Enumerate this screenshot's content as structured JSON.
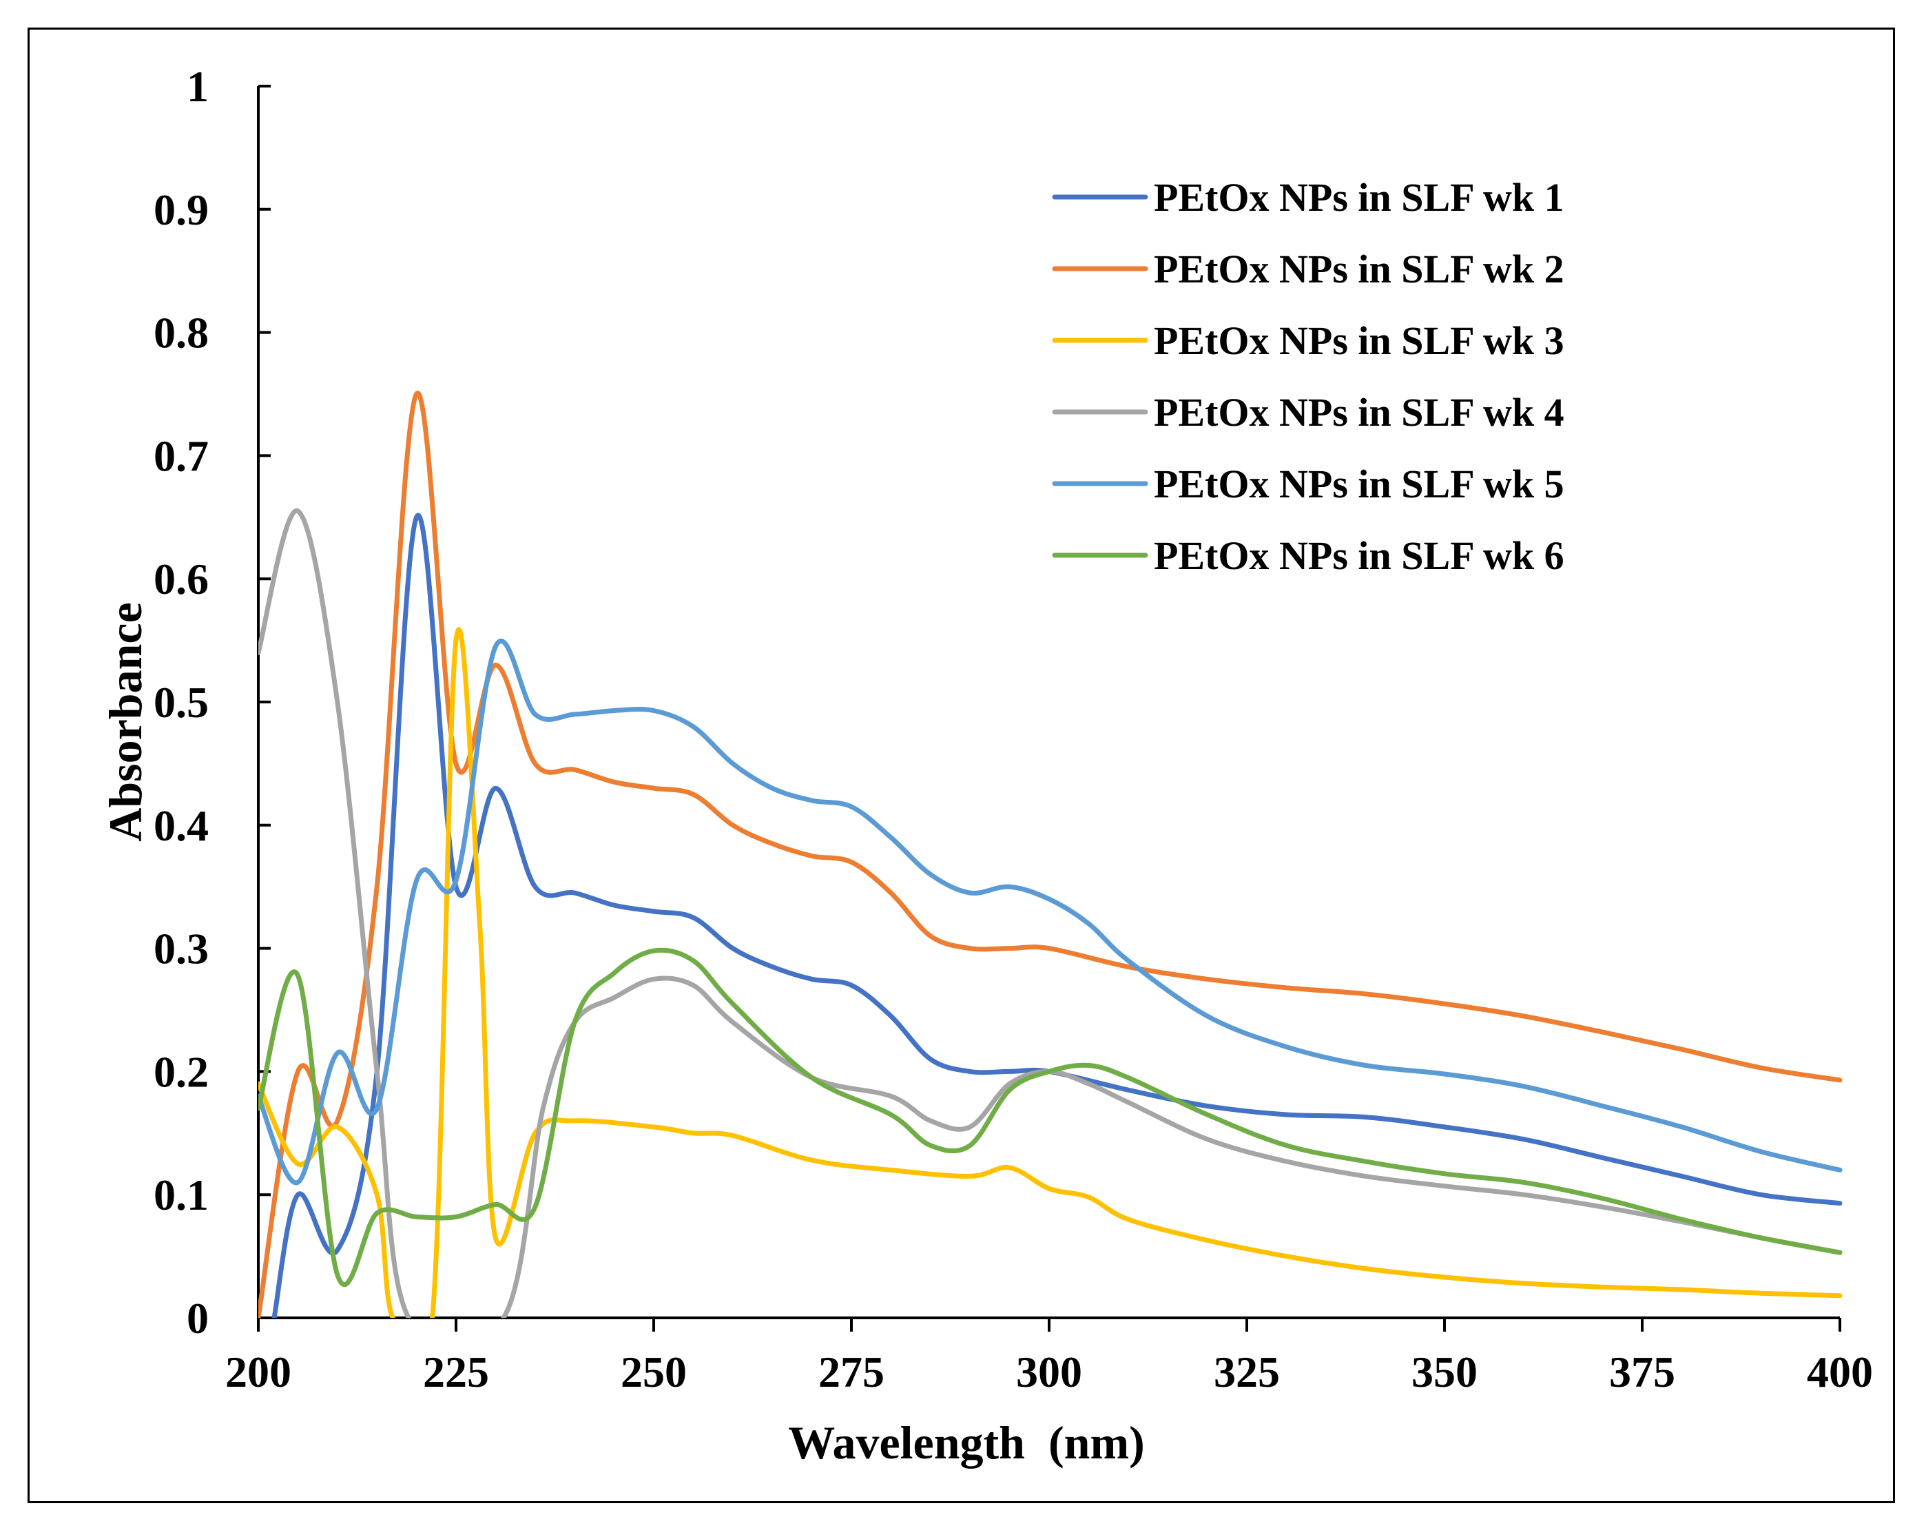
{
  "chart_data": {
    "type": "line",
    "title": "",
    "xlabel": "Wavelength  (nm)",
    "ylabel": "Absorbance",
    "xlim": [
      200,
      400
    ],
    "ylim": [
      0,
      1
    ],
    "x_ticks": [
      200,
      225,
      250,
      275,
      300,
      325,
      350,
      375,
      400
    ],
    "y_ticks": [
      0,
      0.1,
      0.2,
      0.3,
      0.4,
      0.5,
      0.6,
      0.7,
      0.8,
      0.9,
      1
    ],
    "x_tick_labels": [
      "200",
      "225",
      "250",
      "275",
      "300",
      "325",
      "350",
      "375",
      "400"
    ],
    "y_tick_labels": [
      "0",
      "0.1",
      "0.2",
      "0.3",
      "0.4",
      "0.5",
      "0.6",
      "0.7",
      "0.8",
      "0.9",
      "1"
    ],
    "grid": false,
    "legend_position": "top-right",
    "series": [
      {
        "name": "PEtOx NPs in SLF wk 1",
        "color": "#4472C4",
        "x": [
          202,
          205,
          210,
          215,
          220,
          225,
          230,
          235,
          240,
          245,
          250,
          255,
          260,
          265,
          270,
          275,
          280,
          285,
          290,
          295,
          300,
          310,
          320,
          330,
          340,
          350,
          360,
          370,
          380,
          390,
          400
        ],
        "y": [
          0.0,
          0.1,
          0.055,
          0.2,
          0.65,
          0.35,
          0.43,
          0.35,
          0.345,
          0.335,
          0.33,
          0.325,
          0.3,
          0.285,
          0.275,
          0.27,
          0.245,
          0.21,
          0.2,
          0.2,
          0.2,
          0.185,
          0.172,
          0.165,
          0.163,
          0.155,
          0.145,
          0.13,
          0.115,
          0.1,
          0.093
        ]
      },
      {
        "name": "PEtOx NPs in SLF wk 2",
        "color": "#ED7D31",
        "x": [
          200,
          205,
          210,
          215,
          220,
          225,
          230,
          235,
          240,
          245,
          250,
          255,
          260,
          265,
          270,
          275,
          280,
          285,
          290,
          295,
          300,
          310,
          320,
          330,
          340,
          350,
          360,
          370,
          380,
          390,
          400
        ],
        "y": [
          0.0,
          0.2,
          0.16,
          0.35,
          0.75,
          0.45,
          0.53,
          0.45,
          0.445,
          0.435,
          0.43,
          0.425,
          0.4,
          0.385,
          0.375,
          0.37,
          0.345,
          0.31,
          0.3,
          0.3,
          0.3,
          0.285,
          0.275,
          0.268,
          0.263,
          0.255,
          0.245,
          0.232,
          0.218,
          0.203,
          0.193
        ]
      },
      {
        "name": "PEtOx NPs in SLF wk 3",
        "color": "#FFC000",
        "x": [
          200,
          205,
          210,
          215,
          217,
          222,
          225,
          228,
          230,
          235,
          240,
          250,
          255,
          260,
          270,
          280,
          290,
          295,
          300,
          305,
          310,
          320,
          330,
          340,
          350,
          360,
          370,
          380,
          390,
          400
        ],
        "y": [
          0.19,
          0.125,
          0.155,
          0.1,
          0.0,
          0.0,
          0.55,
          0.32,
          0.065,
          0.15,
          0.16,
          0.155,
          0.15,
          0.148,
          0.128,
          0.12,
          0.115,
          0.122,
          0.105,
          0.098,
          0.08,
          0.063,
          0.05,
          0.04,
          0.033,
          0.028,
          0.025,
          0.023,
          0.02,
          0.018
        ]
      },
      {
        "name": "PEtOx NPs in SLF wk 4",
        "color": "#A5A5A5",
        "x": [
          200,
          205,
          210,
          215,
          219,
          231,
          236,
          240,
          245,
          250,
          255,
          260,
          270,
          280,
          285,
          290,
          295,
          300,
          305,
          310,
          320,
          330,
          340,
          350,
          360,
          370,
          380,
          390,
          400
        ],
        "y": [
          0.54,
          0.655,
          0.5,
          0.2,
          0.0,
          0.0,
          0.17,
          0.24,
          0.26,
          0.275,
          0.27,
          0.24,
          0.195,
          0.18,
          0.16,
          0.155,
          0.19,
          0.2,
          0.19,
          0.175,
          0.145,
          0.127,
          0.115,
          0.107,
          0.1,
          0.09,
          0.078,
          0.065,
          0.053
        ]
      },
      {
        "name": "PEtOx NPs in SLF wk 5",
        "color": "#5B9BD5",
        "x": [
          200,
          205,
          210,
          215,
          220,
          225,
          230,
          235,
          240,
          245,
          250,
          255,
          260,
          265,
          270,
          275,
          280,
          285,
          290,
          295,
          300,
          305,
          310,
          320,
          330,
          340,
          350,
          360,
          370,
          380,
          390,
          400
        ],
        "y": [
          0.18,
          0.11,
          0.215,
          0.17,
          0.355,
          0.355,
          0.545,
          0.49,
          0.49,
          0.493,
          0.493,
          0.48,
          0.45,
          0.43,
          0.42,
          0.415,
          0.39,
          0.36,
          0.345,
          0.35,
          0.34,
          0.32,
          0.29,
          0.245,
          0.22,
          0.205,
          0.198,
          0.188,
          0.172,
          0.155,
          0.135,
          0.12
        ]
      },
      {
        "name": "PEtOx NPs in SLF wk 6",
        "color": "#70AD47",
        "x": [
          200,
          205,
          210,
          215,
          220,
          225,
          230,
          235,
          240,
          245,
          250,
          255,
          260,
          270,
          280,
          285,
          290,
          295,
          300,
          305,
          310,
          320,
          330,
          340,
          350,
          360,
          370,
          380,
          390,
          400
        ],
        "y": [
          0.17,
          0.278,
          0.035,
          0.085,
          0.082,
          0.082,
          0.092,
          0.09,
          0.24,
          0.28,
          0.298,
          0.29,
          0.255,
          0.195,
          0.165,
          0.14,
          0.14,
          0.185,
          0.2,
          0.205,
          0.195,
          0.165,
          0.14,
          0.127,
          0.117,
          0.11,
          0.097,
          0.08,
          0.065,
          0.053
        ]
      }
    ]
  }
}
